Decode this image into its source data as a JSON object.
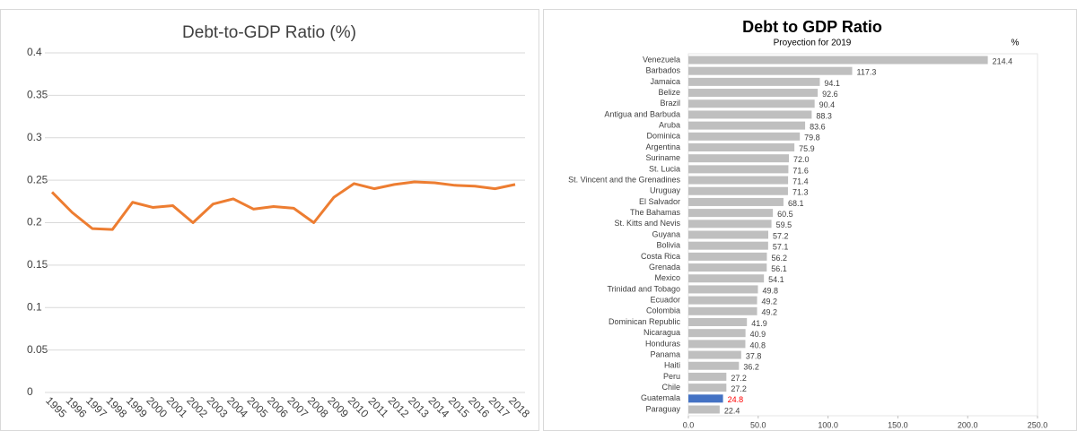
{
  "chart_data": [
    {
      "type": "line",
      "title": "Debt-to-GDP Ratio (%)",
      "categories": [
        "1995",
        "1996",
        "1997",
        "1998",
        "1999",
        "2000",
        "2001",
        "2002",
        "2003",
        "2004",
        "2005",
        "2006",
        "2007",
        "2008",
        "2009",
        "2010",
        "2011",
        "2012",
        "2013",
        "2014",
        "2015",
        "2016",
        "2017",
        "2018"
      ],
      "series": [
        {
          "color": "#ed7d31",
          "values": [
            0.236,
            0.212,
            0.193,
            0.192,
            0.224,
            0.218,
            0.22,
            0.2,
            0.222,
            0.228,
            0.216,
            0.219,
            0.217,
            0.2,
            0.23,
            0.246,
            0.24,
            0.245,
            0.248,
            0.247,
            0.244,
            0.243,
            0.24,
            0.245
          ]
        }
      ],
      "ylim": [
        0,
        0.4
      ],
      "yticks": [
        0,
        0.05,
        0.1,
        0.15,
        0.2,
        0.25,
        0.3,
        0.35,
        0.4
      ],
      "grid": true
    },
    {
      "type": "hbar",
      "title": "Debt to GDP Ratio",
      "subtitle": "Proyection for 2019",
      "unit": "%",
      "categories": [
        "Venezuela",
        "Barbados",
        "Jamaica",
        "Belize",
        "Brazil",
        "Antigua and Barbuda",
        "Aruba",
        "Dominica",
        "Argentina",
        "Suriname",
        "St. Lucia",
        "St. Vincent and the Grenadines",
        "Uruguay",
        "El Salvador",
        "The Bahamas",
        "St. Kitts and Nevis",
        "Guyana",
        "Bolivia",
        "Costa Rica",
        "Grenada",
        "Mexico",
        "Trinidad and Tobago",
        "Ecuador",
        "Colombia",
        "Dominican Republic",
        "Nicaragua",
        "Honduras",
        "Panama",
        "Haiti",
        "Peru",
        "Chile",
        "Guatemala",
        "Paraguay"
      ],
      "values": [
        214.4,
        117.3,
        94.1,
        92.6,
        90.4,
        88.3,
        83.6,
        79.8,
        75.9,
        72.0,
        71.6,
        71.4,
        71.3,
        68.1,
        60.5,
        59.5,
        57.2,
        57.1,
        56.2,
        56.1,
        54.1,
        49.8,
        49.2,
        49.2,
        41.9,
        40.9,
        40.8,
        37.8,
        36.2,
        27.2,
        27.2,
        24.8,
        22.4
      ],
      "value_labels": [
        "214.4",
        "117.3",
        "94.1",
        "92.6",
        "90.4",
        "88.3",
        "83.6",
        "79.8",
        "75.9",
        "72.0",
        "71.6",
        "71.4",
        "71.3",
        "68.1",
        "60.5",
        "59.5",
        "57.2",
        "57.1",
        "56.2",
        "56.1",
        "54.1",
        "49.8",
        "49.2",
        "49.2",
        "41.9",
        "40.9",
        "40.8",
        "37.8",
        "36.2",
        "27.2",
        "27.2",
        "24.8",
        "22.4"
      ],
      "colors": [
        "#bfbfbf",
        "#bfbfbf",
        "#bfbfbf",
        "#bfbfbf",
        "#bfbfbf",
        "#bfbfbf",
        "#bfbfbf",
        "#bfbfbf",
        "#bfbfbf",
        "#bfbfbf",
        "#bfbfbf",
        "#bfbfbf",
        "#bfbfbf",
        "#bfbfbf",
        "#bfbfbf",
        "#bfbfbf",
        "#bfbfbf",
        "#bfbfbf",
        "#bfbfbf",
        "#bfbfbf",
        "#bfbfbf",
        "#bfbfbf",
        "#bfbfbf",
        "#bfbfbf",
        "#bfbfbf",
        "#bfbfbf",
        "#bfbfbf",
        "#bfbfbf",
        "#bfbfbf",
        "#bfbfbf",
        "#bfbfbf",
        "#4472c4",
        "#bfbfbf"
      ],
      "label_colors": [
        "#404040",
        "#404040",
        "#404040",
        "#404040",
        "#404040",
        "#404040",
        "#404040",
        "#404040",
        "#404040",
        "#404040",
        "#404040",
        "#404040",
        "#404040",
        "#404040",
        "#404040",
        "#404040",
        "#404040",
        "#404040",
        "#404040",
        "#404040",
        "#404040",
        "#404040",
        "#404040",
        "#404040",
        "#404040",
        "#404040",
        "#404040",
        "#404040",
        "#404040",
        "#404040",
        "#404040",
        "#ff0000",
        "#404040"
      ],
      "xlim": [
        0,
        250
      ],
      "xticks": [
        {
          "value": 0,
          "label": "0.0"
        },
        {
          "value": 50,
          "label": "50.0"
        },
        {
          "value": 100,
          "label": "100.0"
        },
        {
          "value": 150,
          "label": "150.0"
        },
        {
          "value": 200,
          "label": "200.0"
        },
        {
          "value": 250,
          "label": "250.0"
        }
      ]
    }
  ]
}
